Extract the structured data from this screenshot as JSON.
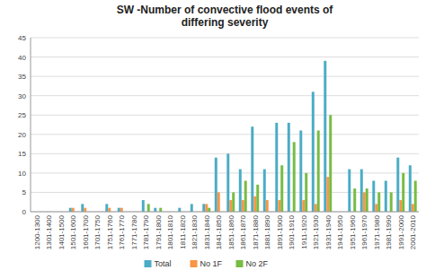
{
  "chart_data": {
    "type": "bar",
    "title": "SW -Number of convective flood events of\ndiffering severity",
    "categories": [
      "1200-1300",
      "1301-1400",
      "1401-1500",
      "1501-1600",
      "1601-1700",
      "1701-1750",
      "1751-1760",
      "1761-1770",
      "1771-1780",
      "1781-1790",
      "1791-1800",
      "1801-1810",
      "1811-1820",
      "1821-1830",
      "1831-1840",
      "1841-1850",
      "1851-1860",
      "1861-1870",
      "1871-1880",
      "1881-1890",
      "1891-1900",
      "1901-1910",
      "1911-1920",
      "1921-1930",
      "1931-1940",
      "1941-1950",
      "1951-1960",
      "1961-1970",
      "1971-1980",
      "1981-1990",
      "1991-2000",
      "2001-2010"
    ],
    "series": [
      {
        "name": "Total",
        "color": "#4bacc6",
        "values": [
          0,
          0,
          0,
          1,
          2,
          0,
          2,
          1,
          0,
          3,
          1,
          0,
          1,
          2,
          2,
          14,
          15,
          11,
          22,
          11,
          23,
          23,
          21,
          31,
          39,
          0,
          11,
          11,
          8,
          8,
          14,
          12
        ]
      },
      {
        "name": "No 1F",
        "color": "#f79646",
        "values": [
          0,
          0,
          0,
          1,
          1,
          0,
          1,
          1,
          0,
          0,
          0,
          0,
          0,
          0,
          2,
          5,
          3,
          3,
          4,
          3,
          3,
          0,
          3,
          2,
          9,
          0,
          0,
          5,
          2,
          0,
          3,
          2
        ]
      },
      {
        "name": "No 2F",
        "color": "#77bc43",
        "values": [
          0,
          0,
          0,
          0,
          0,
          0,
          0,
          0,
          0,
          2,
          1,
          0,
          0,
          0,
          1,
          0,
          5,
          8,
          7,
          0,
          12,
          18,
          10,
          21,
          25,
          0,
          6,
          6,
          5,
          5,
          10,
          8
        ]
      }
    ],
    "ylim": [
      0,
      45
    ],
    "yticks": [
      0,
      5,
      10,
      15,
      20,
      25,
      30,
      35,
      40,
      45
    ],
    "grid": true,
    "legend": "bottom"
  }
}
